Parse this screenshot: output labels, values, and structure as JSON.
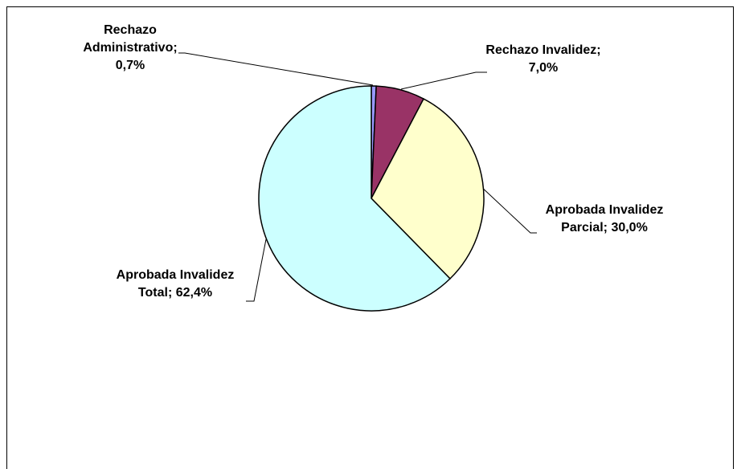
{
  "chart_data": {
    "type": "pie",
    "categories": [
      "Rechazo Administrativo;",
      "Rechazo Invalidez;",
      "Aprobada Invalidez Parcial;",
      "Aprobada Invalidez Total;"
    ],
    "values": [
      0.7,
      7.0,
      30.0,
      62.4
    ],
    "value_labels": [
      "0,7%",
      "7,0%",
      "30,0%",
      "62,4%"
    ],
    "colors": [
      "#9999ff",
      "#993366",
      "#ffffcc",
      "#ccffff"
    ]
  }
}
